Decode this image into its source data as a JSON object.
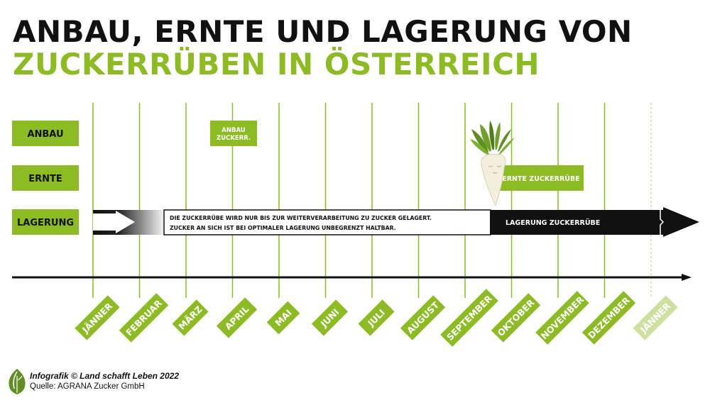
{
  "title": {
    "line1": "ANBAU, ERNTE UND LAGERUNG VON",
    "line2": "ZUCKERRÜBEN IN ÖSTERREICH"
  },
  "rows": {
    "anbau": "ANBAU",
    "ernte": "ERNTE",
    "lagerung": "LAGERUNG"
  },
  "events": {
    "anbau_box": [
      "ANBAU",
      "ZUCKERR."
    ],
    "ernte_box": "ERNTE ZUCKERRÜBE",
    "lagerung_box": "LAGERUNG ZUCKERRÜBE",
    "note": [
      "DIE ZUCKERRÜBE WIRD NUR BIS ZUR WEITERVERARBEITUNG ZU ZUCKER GELAGERT.",
      "ZUCKER AN SICH IST BEI OPTIMALER LAGERUNG UNBEGRENZT HALTBAR."
    ]
  },
  "months": [
    "JÄNNER",
    "FEBRUAR",
    "MÄRZ",
    "APRIL",
    "MAI",
    "JUNI",
    "JULI",
    "AUGUST",
    "SEPTEMBER",
    "OKTOBER",
    "NOVEMBER",
    "DEZEMBER",
    "JÄNNER"
  ],
  "footer": {
    "credit": "Infografik © Land schafft Leben 2022",
    "source": "Quelle: AGRANA Zucker GmbH"
  },
  "colors": {
    "green": "#8cbb23",
    "light_green": "#cde0a0",
    "black": "#111111",
    "white": "#ffffff"
  },
  "icons": {
    "beet": "sugar-beet-illustration",
    "logo": "leaf-logo"
  }
}
